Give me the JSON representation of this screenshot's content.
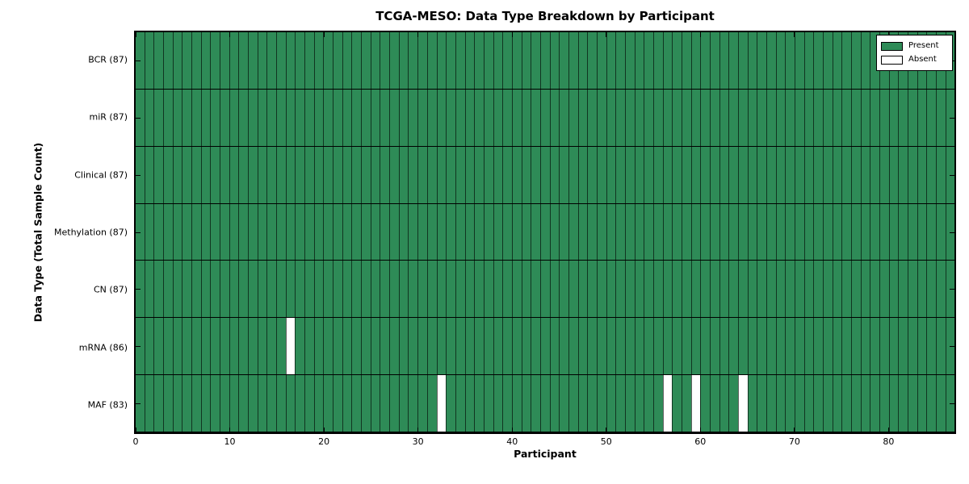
{
  "chart_data": {
    "type": "heatmap",
    "title": "TCGA-MESO: Data Type Breakdown by Participant",
    "xlabel": "Participant",
    "ylabel": "Data Type (Total Sample Count)",
    "n_participants": 87,
    "x_ticks": [
      0,
      10,
      20,
      30,
      40,
      50,
      60,
      70,
      80
    ],
    "rows": [
      {
        "label": "BCR (87)",
        "data_type": "BCR",
        "present_count": 87,
        "absent_participants": []
      },
      {
        "label": "miR (87)",
        "data_type": "miR",
        "present_count": 87,
        "absent_participants": []
      },
      {
        "label": "Clinical (87)",
        "data_type": "Clinical",
        "present_count": 87,
        "absent_participants": []
      },
      {
        "label": "Methylation (87)",
        "data_type": "Methylation",
        "present_count": 87,
        "absent_participants": []
      },
      {
        "label": "CN (87)",
        "data_type": "CN",
        "present_count": 87,
        "absent_participants": []
      },
      {
        "label": "mRNA (86)",
        "data_type": "mRNA",
        "present_count": 86,
        "absent_participants": [
          16
        ]
      },
      {
        "label": "MAF (83)",
        "data_type": "MAF",
        "present_count": 83,
        "absent_participants": [
          32,
          56,
          59,
          64
        ]
      }
    ],
    "legend": [
      {
        "label": "Present",
        "color": "#2e8b57"
      },
      {
        "label": "Absent",
        "color": "#ffffff"
      }
    ],
    "colors": {
      "present": "#2e8b57",
      "absent": "#ffffff",
      "grid": "#000000",
      "background": "#ffffff"
    },
    "legend_position": "upper right",
    "grid": true
  }
}
